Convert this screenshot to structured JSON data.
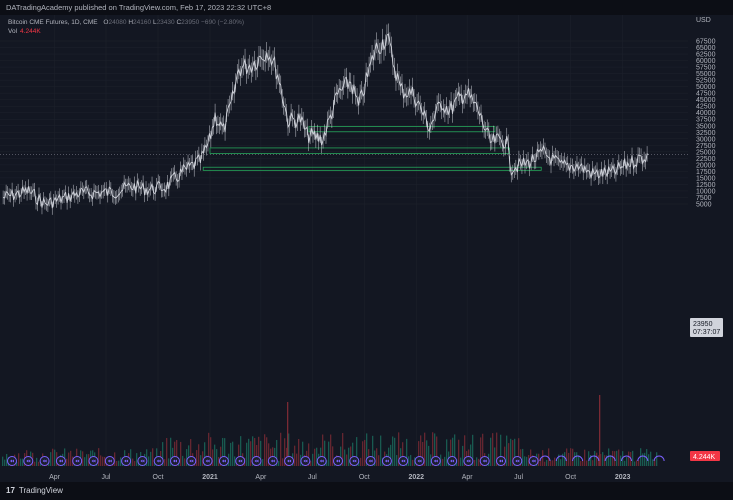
{
  "publisher_line": "DATradingAcademy published on TradingView.com, Feb 17, 2023 22:32 UTC+8",
  "legend": {
    "symbol": "Bitcoin CME Futures, 1D, CME",
    "o_label": "O",
    "o_value": "24080",
    "h_label": "H",
    "h_value": "24160",
    "l_label": "L",
    "l_value": "23430",
    "c_label": "C",
    "c_value": "23950",
    "change": "−690 (−2.80%)",
    "vol_label": "Vol",
    "vol_value": "4.244K"
  },
  "price_axis": {
    "currency": "USD",
    "current_price": "23950",
    "countdown": "07:37:07",
    "vol_badge": "4.244K"
  },
  "footer": {
    "brand": "TradingView"
  },
  "colors": {
    "background": "#131722",
    "candle": "#d1d4dc",
    "zone": "#26a65b",
    "vol_up": "#1b6b5c",
    "vol_down": "#7a2a34",
    "marker": "#7b61ff",
    "grid": "#1e222d"
  },
  "chart_data": {
    "type": "line",
    "title": "Bitcoin CME Futures, 1D, CME",
    "ylabel": "USD",
    "ylim": [
      4000,
      69500
    ],
    "x_tick_labels": [
      "Apr",
      "Jul",
      "Oct",
      "2021",
      "Apr",
      "Jul",
      "Oct",
      "2022",
      "Apr",
      "Jul",
      "Oct",
      "2023"
    ],
    "y_tick_labels": [
      "67500",
      "65000",
      "62500",
      "60000",
      "57500",
      "55000",
      "52500",
      "50000",
      "47500",
      "45000",
      "42500",
      "40000",
      "37500",
      "35000",
      "32500",
      "30000",
      "27500",
      "25000",
      "22500",
      "20000",
      "17500",
      "15000",
      "12500",
      "10000",
      "7500",
      "5000"
    ],
    "series": [
      {
        "x": [
          "2020-01-01",
          "2020-02-15",
          "2020-03-15",
          "2020-04-15",
          "2020-05-15",
          "2020-06-15",
          "2020-07-15",
          "2020-08-15",
          "2020-09-15",
          "2020-10-15",
          "2020-11-15",
          "2020-12-15",
          "2020-12-31",
          "2021-01-10",
          "2021-01-25",
          "2021-02-10",
          "2021-02-21",
          "2021-03-15",
          "2021-04-14",
          "2021-05-01",
          "2021-05-19",
          "2021-06-10",
          "2021-06-22",
          "2021-07-20",
          "2021-08-15",
          "2021-09-07",
          "2021-09-21",
          "2021-10-20",
          "2021-11-10",
          "2021-12-04",
          "2021-12-28",
          "2022-01-24",
          "2022-02-15",
          "2022-03-01",
          "2022-03-29",
          "2022-04-20",
          "2022-05-12",
          "2022-05-28",
          "2022-06-10",
          "2022-06-18",
          "2022-07-15",
          "2022-08-14",
          "2022-09-15",
          "2022-10-15",
          "2022-11-09",
          "2022-12-15",
          "2023-01-15",
          "2023-02-16"
        ],
        "y": [
          7500,
          10000,
          5000,
          7000,
          9200,
          9300,
          9600,
          11800,
          10700,
          11500,
          17500,
          21500,
          29000,
          39000,
          33000,
          45000,
          57000,
          58500,
          64000,
          55000,
          37000,
          37500,
          31500,
          30000,
          47000,
          52000,
          42000,
          64000,
          69000,
          49000,
          47000,
          34500,
          44000,
          41000,
          48000,
          41000,
          28500,
          29500,
          29000,
          19000,
          20500,
          24500,
          19500,
          19700,
          16500,
          17000,
          21000,
          23950
        ]
      }
    ],
    "annotations": [
      {
        "type": "zone",
        "x_start": "2021-06-25",
        "x_end": "2022-05-20",
        "y_low": 32700,
        "y_high": 34700
      },
      {
        "type": "zone",
        "x_start": "2021-01-01",
        "x_end": "2022-06-15",
        "y_low": 24400,
        "y_high": 26500
      },
      {
        "type": "zone",
        "x_start": "2020-12-20",
        "x_end": "2022-08-10",
        "y_low": 17900,
        "y_high": 19100
      }
    ]
  }
}
